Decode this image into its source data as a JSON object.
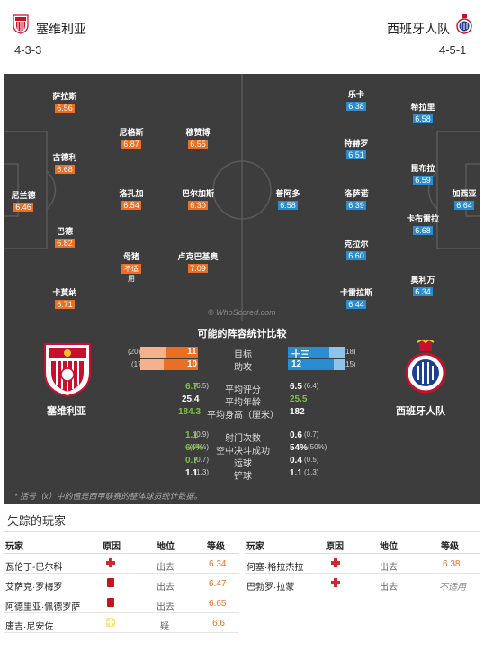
{
  "home": {
    "name": "塞维利亚",
    "formation": "4-3-3",
    "stat_label": "塞维利亚",
    "color": "#e96f24"
  },
  "away": {
    "name": "西班牙人队",
    "formation": "4-5-1",
    "stat_label": "西班牙人队",
    "color": "#2a8cd1"
  },
  "pitch": {
    "watermark": "© WhoScored.com",
    "home_players": [
      {
        "name": "萨拉斯",
        "rating": "6.56"
      },
      {
        "name": "古德利",
        "rating": "6.68"
      },
      {
        "name": "尼兰德",
        "rating": "6.46"
      },
      {
        "name": "巴德",
        "rating": "6.82"
      },
      {
        "name": "卡莫纳",
        "rating": "6.71"
      },
      {
        "name": "尼格斯",
        "rating": "6.87"
      },
      {
        "name": "洛孔加",
        "rating": "6.54"
      },
      {
        "name": "母猪",
        "rating": "不适",
        "sub": "用"
      },
      {
        "name": "穆赞博",
        "rating": "6.55"
      },
      {
        "name": "巴尔加斯",
        "rating": "6.30"
      },
      {
        "name": "卢克巴基奥",
        "rating": "7.09"
      }
    ],
    "away_players": [
      {
        "name": "普阿多",
        "rating": "6.58"
      },
      {
        "name": "乐卡",
        "rating": "6.38"
      },
      {
        "name": "特赫罗",
        "rating": "6.51"
      },
      {
        "name": "洛萨诺",
        "rating": "6.39"
      },
      {
        "name": "克拉尔",
        "rating": "6.60"
      },
      {
        "name": "卡雷拉斯",
        "rating": "6.44"
      },
      {
        "name": "希拉里",
        "rating": "6.58"
      },
      {
        "name": "昆布拉",
        "rating": "6.59"
      },
      {
        "name": "卡布雷拉",
        "rating": "6.68"
      },
      {
        "name": "奥利万",
        "rating": "6.34"
      },
      {
        "name": "加西亚",
        "rating": "6.64"
      }
    ]
  },
  "stats": {
    "title": "可能的阵容统计比较",
    "bars": [
      {
        "label": "目标",
        "home": "11",
        "home_note": "(20)",
        "home_frac": 0.55,
        "away": "十三",
        "away_note": "18)",
        "away_frac": 0.72
      },
      {
        "label": "助攻",
        "home": "10",
        "home_note": "(17",
        "home_frac": 0.59,
        "away": "12",
        "away_note": "15)",
        "away_frac": 0.8
      }
    ],
    "rows": [
      {
        "label": "平均评分",
        "home_prev": "(6.5)",
        "home": "6.7",
        "home_green": true,
        "away": "6.5",
        "away_green": false,
        "away_prev": "(6.4)"
      },
      {
        "label": "平均年龄",
        "home_prev": "",
        "home": "25.4",
        "home_green": false,
        "away": "25.5",
        "away_green": true,
        "away_prev": ""
      },
      {
        "label": "平均身高（厘米）",
        "home_prev": "",
        "home": "184.3",
        "home_green": true,
        "away": "182",
        "away_green": false,
        "away_prev": ""
      },
      {
        "label": "射门次数",
        "home_prev": "(0.9)",
        "home": "1.1",
        "home_green": true,
        "away": "0.6",
        "away_green": false,
        "away_prev": "(0.7)"
      },
      {
        "label": "空中决斗成功",
        "home_prev": "(54%)",
        "home": "64%",
        "home_green": true,
        "away": "54%",
        "away_green": false,
        "away_prev": "(50%)"
      },
      {
        "label": "运球",
        "home_prev": "(0.7)",
        "home": "0.7",
        "home_green": true,
        "away": "0.4",
        "away_green": false,
        "away_prev": "(0.5)"
      },
      {
        "label": "铲球",
        "home_prev": "(1.3)",
        "home": "1.1",
        "home_green": false,
        "away": "1.1",
        "away_green": false,
        "away_prev": "(1.3)"
      }
    ],
    "footnote": "* 括号（x）中的值是西甲联赛的整体球员统计数据。"
  },
  "missing": {
    "title": "失踪的玩家",
    "headers": {
      "player": "玩家",
      "reason": "原因",
      "status": "地位",
      "rating": "等级"
    },
    "home": [
      {
        "player": "瓦伦丁-巴尔科",
        "icon": "injury-icon",
        "status": "出去",
        "rating": "6.34"
      },
      {
        "player": "艾萨克·罗梅罗",
        "icon": "red-card-icon",
        "status": "出去",
        "rating": "6.47"
      },
      {
        "player": "阿德里亚·佩德罗萨",
        "icon": "red-card-icon",
        "status": "出去",
        "rating": "6.65"
      },
      {
        "player": "唐吉·尼安佐",
        "icon": "doubtful-icon",
        "status": "疑",
        "rating": "6.6"
      }
    ],
    "away": [
      {
        "player": "何塞·格拉杰拉",
        "icon": "injury-icon",
        "status": "出去",
        "rating": "6.38"
      },
      {
        "player": "巴勃罗·拉蒙",
        "icon": "injury-icon",
        "status": "出去",
        "rating": "不适用"
      }
    ]
  }
}
